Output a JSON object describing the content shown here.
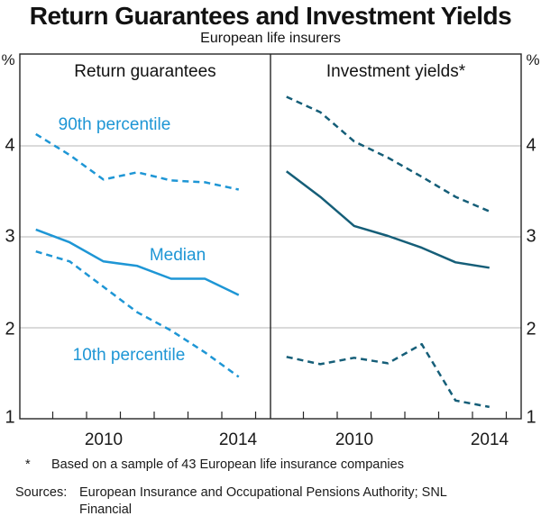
{
  "chart_data": {
    "type": "line",
    "title": "Return Guarantees and Investment Yields",
    "subtitle": "European life insurers",
    "ylabel": "%",
    "ylim": [
      1,
      5
    ],
    "yticks": [
      1,
      2,
      3,
      4
    ],
    "grid": "horizontal",
    "x": [
      2008,
      2009,
      2010,
      2011,
      2012,
      2013,
      2014
    ],
    "x_tick_labels": [
      "2010",
      "2014"
    ],
    "panels": [
      {
        "title": "Return guarantees",
        "color": "#1E96D5",
        "series": [
          {
            "name": "90th percentile",
            "line_style": "dashed",
            "values": [
              4.13,
              3.9,
              3.63,
              3.71,
              3.62,
              3.6,
              3.52
            ]
          },
          {
            "name": "Median",
            "line_style": "solid",
            "values": [
              3.08,
              2.94,
              2.73,
              2.68,
              2.54,
              2.54,
              2.36
            ]
          },
          {
            "name": "10th percentile",
            "line_style": "dashed",
            "values": [
              2.84,
              2.73,
              2.45,
              2.17,
              1.97,
              1.73,
              1.46
            ]
          }
        ]
      },
      {
        "title": "Investment yields*",
        "color": "#155E78",
        "series": [
          {
            "name": "90th percentile",
            "line_style": "dashed",
            "values": [
              4.54,
              4.37,
              4.05,
              3.87,
              3.66,
              3.44,
              3.28
            ]
          },
          {
            "name": "Median",
            "line_style": "solid",
            "values": [
              3.72,
              3.44,
              3.12,
              3.01,
              2.88,
              2.72,
              2.66
            ]
          },
          {
            "name": "10th percentile",
            "line_style": "dashed",
            "values": [
              1.68,
              1.6,
              1.67,
              1.61,
              1.82,
              1.2,
              1.13
            ]
          }
        ]
      }
    ]
  },
  "footnote": {
    "marker": "*",
    "text": "Based on a sample of 43 European life insurance companies"
  },
  "sources": {
    "label": "Sources:",
    "text": "European Insurance and Occupational Pensions Authority; SNL Financial"
  }
}
